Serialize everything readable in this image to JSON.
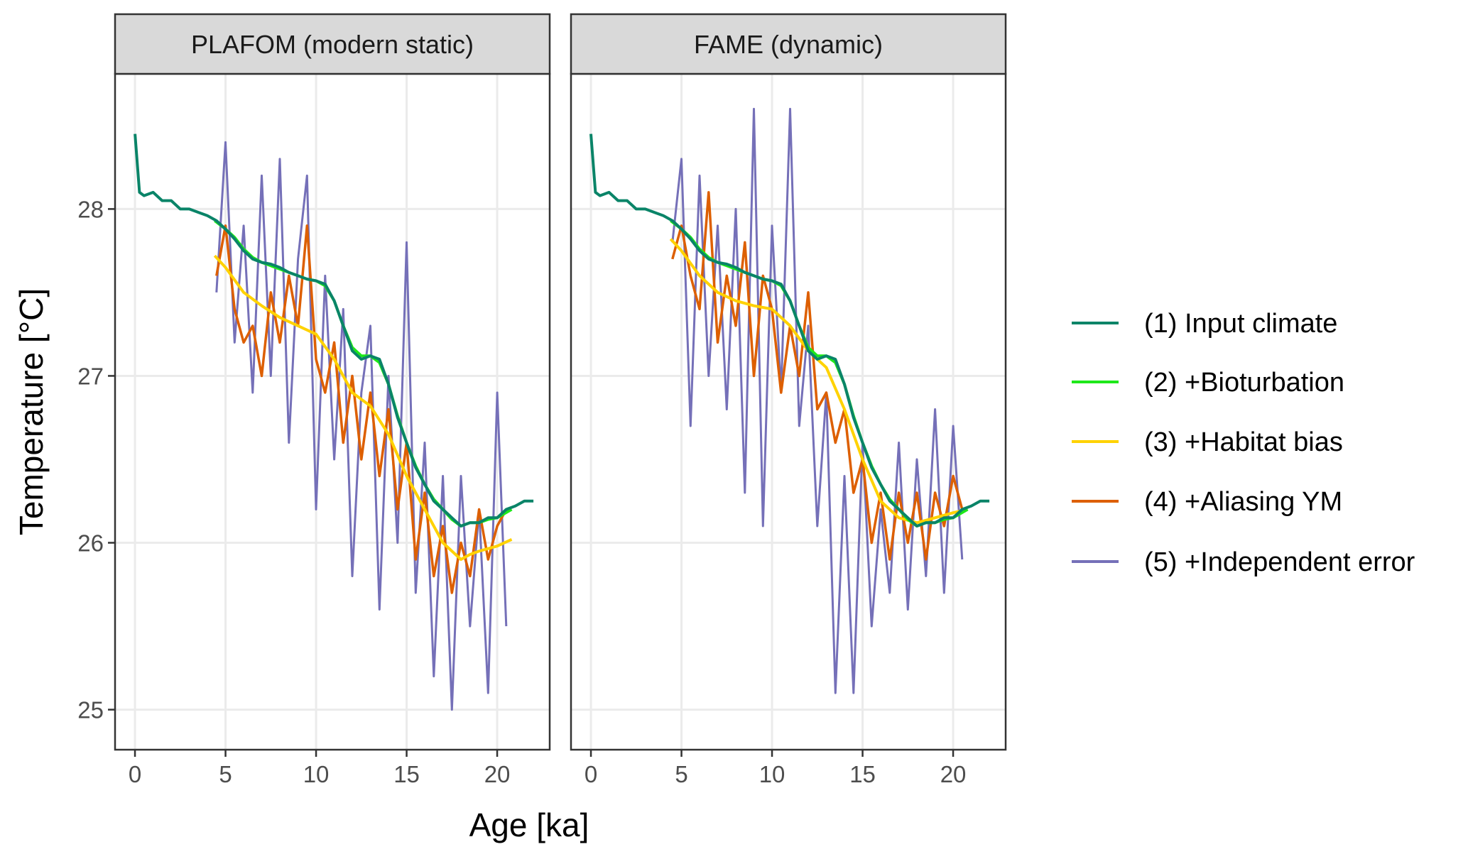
{
  "chart_data": {
    "type": "line",
    "xlabel": "Age [ka]",
    "ylabel": "Temperature [°C]",
    "xlim": [
      -1.1,
      22.9
    ],
    "ylim": [
      24.76,
      28.81
    ],
    "xticks": [
      0,
      5,
      10,
      15,
      20
    ],
    "yticks": [
      25,
      26,
      27,
      28
    ],
    "grid": true,
    "legend_position": "right",
    "legend": [
      {
        "key": "input",
        "label": "(1) Input climate",
        "color": "#0a8468"
      },
      {
        "key": "bioturbation",
        "label": "(2) +Bioturbation",
        "color": "#1ee81a"
      },
      {
        "key": "habitat",
        "label": "(3) +Habitat bias",
        "color": "#ffd200"
      },
      {
        "key": "aliasing",
        "label": "(4) +Aliasing YM",
        "color": "#dd5f00"
      },
      {
        "key": "independent",
        "label": "(5) +Independent error",
        "color": "#7570b8"
      }
    ],
    "panels": [
      {
        "title": "PLAFOM (modern static)",
        "series": {
          "input": {
            "x": [
              0,
              0.25,
              0.5,
              1,
              1.5,
              2,
              2.5,
              3,
              3.5,
              4,
              4.5,
              5,
              5.5,
              6,
              6.5,
              7,
              7.5,
              8,
              8.5,
              9,
              9.5,
              10,
              10.5,
              11,
              11.5,
              12,
              12.5,
              13,
              13.5,
              14,
              14.5,
              15,
              15.5,
              16,
              16.5,
              17,
              17.5,
              18,
              18.5,
              19,
              19.5,
              20,
              20.5,
              21,
              21.5,
              22
            ],
            "y": [
              28.45,
              28.1,
              28.08,
              28.1,
              28.05,
              28.05,
              28.0,
              28.0,
              27.98,
              27.96,
              27.93,
              27.88,
              27.82,
              27.75,
              27.7,
              27.68,
              27.67,
              27.65,
              27.62,
              27.6,
              27.58,
              27.57,
              27.55,
              27.45,
              27.3,
              27.15,
              27.1,
              27.12,
              27.1,
              26.95,
              26.75,
              26.6,
              26.45,
              26.35,
              26.25,
              26.2,
              26.15,
              26.1,
              26.12,
              26.12,
              26.15,
              26.15,
              26.2,
              26.22,
              26.25,
              26.25
            ]
          },
          "bioturbation": {
            "x": [
              4.4,
              5,
              5.5,
              6,
              6.5,
              7,
              7.5,
              8,
              8.5,
              9,
              9.5,
              10,
              10.5,
              11,
              11.5,
              12,
              12.5,
              13,
              13.5,
              14,
              14.5,
              15,
              15.5,
              16,
              16.5,
              17,
              17.5,
              18,
              18.5,
              19,
              19.5,
              20,
              20.8
            ],
            "y": [
              27.93,
              27.88,
              27.83,
              27.76,
              27.71,
              27.68,
              27.66,
              27.64,
              27.62,
              27.6,
              27.58,
              27.57,
              27.54,
              27.45,
              27.3,
              27.17,
              27.12,
              27.12,
              27.08,
              26.95,
              26.76,
              26.6,
              26.46,
              26.35,
              26.26,
              26.2,
              26.14,
              26.1,
              26.12,
              26.12,
              26.14,
              26.15,
              26.2
            ]
          },
          "habitat": {
            "x": [
              4.4,
              5,
              6,
              7,
              8,
              9,
              10,
              11,
              12,
              13,
              14,
              15,
              16,
              17,
              18,
              18.5,
              19,
              20,
              20.8
            ],
            "y": [
              27.72,
              27.65,
              27.5,
              27.42,
              27.35,
              27.3,
              27.25,
              27.1,
              26.9,
              26.82,
              26.65,
              26.4,
              26.2,
              26.0,
              25.9,
              25.93,
              25.95,
              25.98,
              26.02
            ]
          },
          "aliasing": {
            "x": [
              4.5,
              5,
              5.5,
              6,
              6.5,
              7,
              7.5,
              8,
              8.5,
              9,
              9.5,
              10,
              10.5,
              11,
              11.5,
              12,
              12.5,
              13,
              13.5,
              14,
              14.5,
              15,
              15.5,
              16,
              16.5,
              17,
              17.5,
              18,
              18.5,
              19,
              19.5,
              20,
              20.5
            ],
            "y": [
              27.6,
              27.9,
              27.4,
              27.2,
              27.3,
              27.0,
              27.5,
              27.2,
              27.6,
              27.3,
              27.9,
              27.1,
              26.9,
              27.2,
              26.6,
              27.0,
              26.5,
              26.9,
              26.4,
              26.8,
              26.2,
              26.6,
              25.9,
              26.3,
              25.8,
              26.1,
              25.7,
              26.0,
              25.8,
              26.2,
              25.9,
              26.1,
              26.2
            ]
          },
          "independent": {
            "x": [
              4.5,
              5,
              5.5,
              6,
              6.5,
              7,
              7.5,
              8,
              8.5,
              9,
              9.5,
              10,
              10.5,
              11,
              11.5,
              12,
              12.5,
              13,
              13.5,
              14,
              14.5,
              15,
              15.5,
              16,
              16.5,
              17,
              17.5,
              18,
              18.5,
              19,
              19.5,
              20,
              20.5
            ],
            "y": [
              27.5,
              28.4,
              27.2,
              27.9,
              26.9,
              28.2,
              27.0,
              28.3,
              26.6,
              27.7,
              28.2,
              26.2,
              27.6,
              26.5,
              27.4,
              25.8,
              26.9,
              27.3,
              25.6,
              27.0,
              26.0,
              27.8,
              25.7,
              26.6,
              25.2,
              26.4,
              25.0,
              26.4,
              25.5,
              26.2,
              25.1,
              26.9,
              25.5
            ]
          }
        }
      },
      {
        "title": "FAME (dynamic)",
        "series": {
          "input": {
            "x": [
              0,
              0.25,
              0.5,
              1,
              1.5,
              2,
              2.5,
              3,
              3.5,
              4,
              4.5,
              5,
              5.5,
              6,
              6.5,
              7,
              7.5,
              8,
              8.5,
              9,
              9.5,
              10,
              10.5,
              11,
              11.5,
              12,
              12.5,
              13,
              13.5,
              14,
              14.5,
              15,
              15.5,
              16,
              16.5,
              17,
              17.5,
              18,
              18.5,
              19,
              19.5,
              20,
              20.5,
              21,
              21.5,
              22
            ],
            "y": [
              28.45,
              28.1,
              28.08,
              28.1,
              28.05,
              28.05,
              28.0,
              28.0,
              27.98,
              27.96,
              27.93,
              27.88,
              27.82,
              27.75,
              27.7,
              27.68,
              27.67,
              27.65,
              27.62,
              27.6,
              27.58,
              27.57,
              27.55,
              27.45,
              27.3,
              27.15,
              27.1,
              27.12,
              27.1,
              26.95,
              26.75,
              26.6,
              26.45,
              26.35,
              26.25,
              26.2,
              26.15,
              26.1,
              26.12,
              26.12,
              26.15,
              26.15,
              26.2,
              26.22,
              26.25,
              26.25
            ]
          },
          "bioturbation": {
            "x": [
              4.4,
              5,
              5.5,
              6,
              6.5,
              7,
              7.5,
              8,
              8.5,
              9,
              9.5,
              10,
              10.5,
              11,
              11.5,
              12,
              12.5,
              13,
              13.5,
              14,
              14.5,
              15,
              15.5,
              16,
              16.5,
              17,
              17.5,
              18,
              18.5,
              19,
              19.5,
              20,
              20.8
            ],
            "y": [
              27.93,
              27.88,
              27.83,
              27.76,
              27.71,
              27.68,
              27.66,
              27.64,
              27.62,
              27.6,
              27.58,
              27.57,
              27.54,
              27.45,
              27.3,
              27.17,
              27.12,
              27.12,
              27.08,
              26.95,
              26.76,
              26.6,
              26.46,
              26.35,
              26.26,
              26.2,
              26.14,
              26.1,
              26.12,
              26.12,
              26.14,
              26.15,
              26.2
            ]
          },
          "habitat": {
            "x": [
              4.4,
              5,
              6,
              7,
              8,
              9,
              10,
              11,
              12,
              13,
              14,
              15,
              16,
              17,
              18,
              19,
              20,
              20.8
            ],
            "y": [
              27.82,
              27.75,
              27.6,
              27.5,
              27.45,
              27.42,
              27.4,
              27.3,
              27.15,
              27.05,
              26.8,
              26.5,
              26.25,
              26.15,
              26.12,
              26.15,
              26.18,
              26.2
            ]
          },
          "aliasing": {
            "x": [
              4.5,
              5,
              5.5,
              6,
              6.5,
              7,
              7.5,
              8,
              8.5,
              9,
              9.5,
              10,
              10.5,
              11,
              11.5,
              12,
              12.5,
              13,
              13.5,
              14,
              14.5,
              15,
              15.5,
              16,
              16.5,
              17,
              17.5,
              18,
              18.5,
              19,
              19.5,
              20,
              20.5
            ],
            "y": [
              27.7,
              27.9,
              27.6,
              27.4,
              28.1,
              27.2,
              27.6,
              27.3,
              27.8,
              27.0,
              27.6,
              27.4,
              26.9,
              27.3,
              27.0,
              27.5,
              26.8,
              26.9,
              26.6,
              26.8,
              26.3,
              26.5,
              26.0,
              26.3,
              25.9,
              26.3,
              26.0,
              26.3,
              25.9,
              26.3,
              26.1,
              26.4,
              26.2
            ]
          },
          "independent": {
            "x": [
              4.5,
              5,
              5.5,
              6,
              6.5,
              7,
              7.5,
              8,
              8.5,
              9,
              9.5,
              10,
              10.5,
              11,
              11.5,
              12,
              12.5,
              13,
              13.5,
              14,
              14.5,
              15,
              15.5,
              16,
              16.5,
              17,
              17.5,
              18,
              18.5,
              19,
              19.5,
              20,
              20.5
            ],
            "y": [
              27.8,
              28.3,
              26.7,
              28.2,
              27.0,
              27.9,
              26.8,
              28.0,
              26.3,
              28.6,
              26.1,
              27.9,
              26.9,
              28.6,
              26.7,
              27.3,
              26.1,
              26.9,
              25.1,
              26.4,
              25.1,
              26.6,
              25.5,
              26.2,
              25.7,
              26.6,
              25.6,
              26.5,
              25.8,
              26.8,
              25.7,
              26.7,
              25.9
            ]
          }
        }
      }
    ]
  }
}
